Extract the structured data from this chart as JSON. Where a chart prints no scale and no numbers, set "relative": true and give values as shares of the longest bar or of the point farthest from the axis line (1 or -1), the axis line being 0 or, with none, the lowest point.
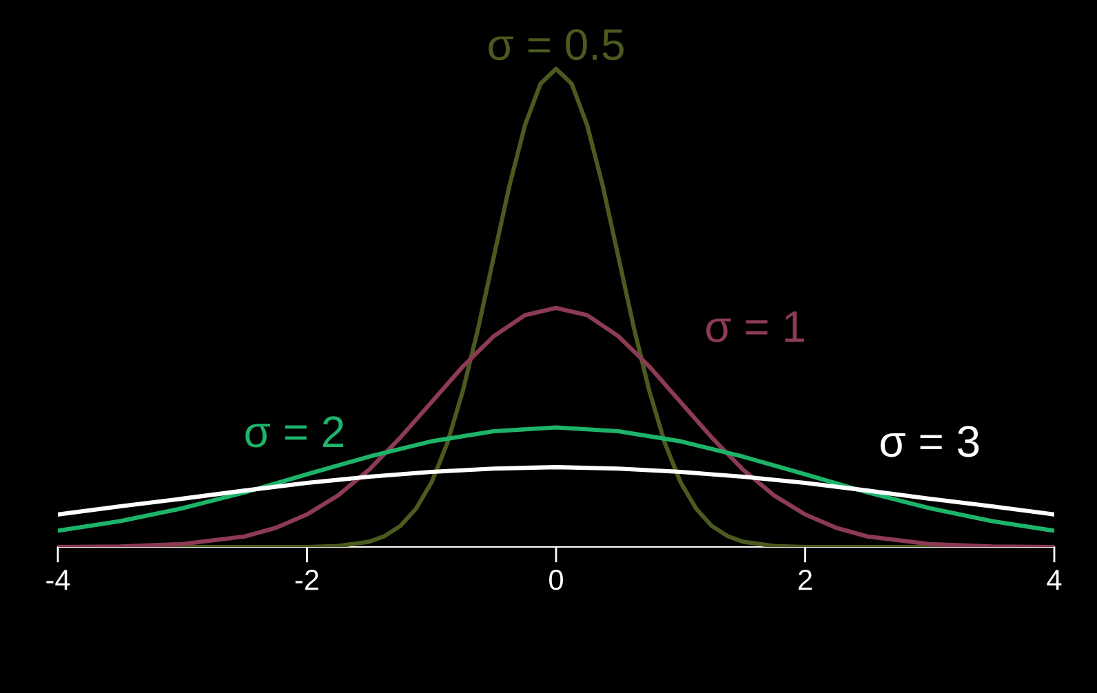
{
  "chart_data": {
    "type": "line",
    "relative": true,
    "xlim": [
      -4,
      4
    ],
    "xticks": [
      -4,
      -2,
      0,
      2,
      4
    ],
    "tick_labels": "x",
    "grid": false,
    "legend": false,
    "marker": "none",
    "line_style": "solid",
    "series": [
      {
        "name": "σ = 0.5",
        "color": "#4b5a1f",
        "x": [
          -4,
          -3,
          -2,
          -1.75,
          -1.5,
          -1.375,
          -1.25,
          -1.125,
          -1,
          -0.875,
          -0.75,
          -0.625,
          -0.5,
          -0.375,
          -0.25,
          -0.125,
          0,
          0.125,
          0.25,
          0.375,
          0.5,
          0.625,
          0.75,
          0.875,
          1,
          1.125,
          1.25,
          1.375,
          1.5,
          1.75,
          2,
          3,
          4
        ],
        "values": [
          0,
          0,
          0,
          0.002,
          0.011,
          0.023,
          0.044,
          0.08,
          0.135,
          0.216,
          0.325,
          0.458,
          0.607,
          0.755,
          0.882,
          0.969,
          1,
          0.969,
          0.882,
          0.755,
          0.607,
          0.458,
          0.325,
          0.216,
          0.135,
          0.08,
          0.044,
          0.023,
          0.011,
          0.002,
          0,
          0,
          0
        ]
      },
      {
        "name": "σ = 1",
        "color": "#8c3b53",
        "x": [
          -4,
          -3.5,
          -3,
          -2.5,
          -2.25,
          -2,
          -1.75,
          -1.5,
          -1.25,
          -1,
          -0.75,
          -0.5,
          -0.25,
          0,
          0.25,
          0.5,
          0.75,
          1,
          1.25,
          1.5,
          1.75,
          2,
          2.25,
          2.5,
          3,
          3.5,
          4
        ],
        "values": [
          0,
          0.001,
          0.006,
          0.022,
          0.04,
          0.068,
          0.108,
          0.162,
          0.229,
          0.303,
          0.377,
          0.441,
          0.485,
          0.5,
          0.485,
          0.441,
          0.377,
          0.303,
          0.229,
          0.162,
          0.108,
          0.068,
          0.04,
          0.022,
          0.006,
          0.001,
          0
        ]
      },
      {
        "name": "σ = 2",
        "color": "#1db46a",
        "x": [
          -4,
          -3.5,
          -3,
          -2.5,
          -2,
          -1.5,
          -1,
          -0.5,
          0,
          0.5,
          1,
          1.5,
          2,
          2.5,
          3,
          3.5,
          4
        ],
        "values": [
          0.034,
          0.054,
          0.081,
          0.114,
          0.152,
          0.189,
          0.221,
          0.242,
          0.25,
          0.242,
          0.221,
          0.189,
          0.152,
          0.114,
          0.081,
          0.054,
          0.034
        ]
      },
      {
        "name": "σ = 3",
        "color": "#ffffff",
        "x": [
          -4,
          -3.5,
          -3,
          -2.5,
          -2,
          -1.5,
          -1,
          -0.5,
          0,
          0.5,
          1,
          1.5,
          2,
          2.5,
          3,
          3.5,
          4
        ],
        "values": [
          0.068,
          0.085,
          0.101,
          0.118,
          0.134,
          0.147,
          0.157,
          0.164,
          0.167,
          0.164,
          0.157,
          0.147,
          0.134,
          0.118,
          0.101,
          0.085,
          0.068
        ]
      }
    ]
  }
}
